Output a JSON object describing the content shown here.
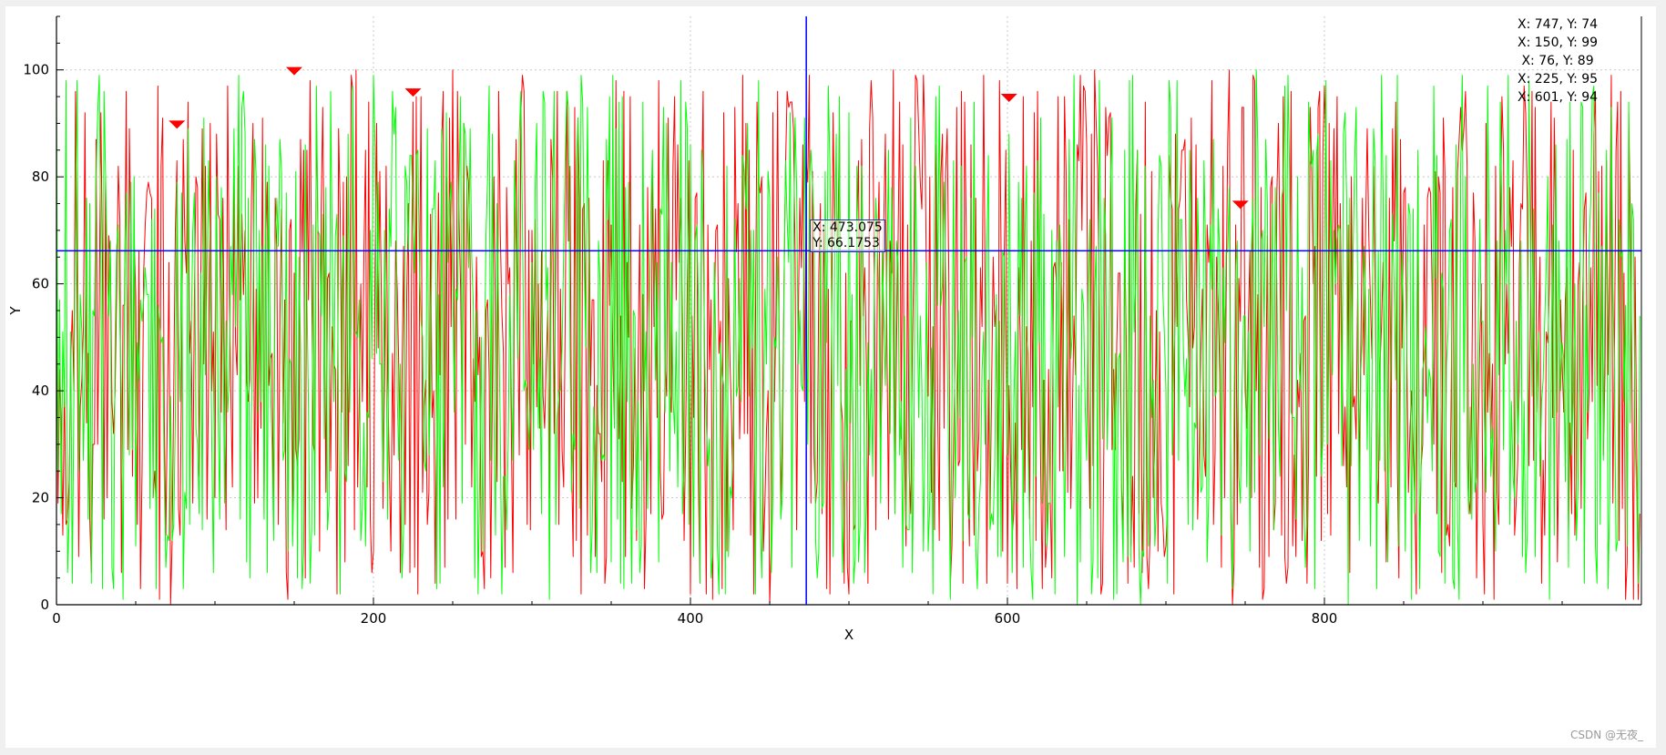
{
  "window": {
    "watermark": "CSDN @无夜_"
  },
  "crosshair": {
    "x_label": "X: 473.075",
    "y_label": "Y: 66.1753",
    "x": 473.075,
    "y": 66.1753,
    "color": "#0000ff"
  },
  "marker_list": [
    "X: 747, Y: 74",
    "X: 150, Y: 99",
    " X: 76, Y: 89",
    "X: 225, Y: 95",
    "X: 601, Y: 94"
  ],
  "chart_data": {
    "type": "line",
    "title": "",
    "xlabel": "X",
    "ylabel": "Y",
    "xlim": [
      0,
      1000
    ],
    "ylim": [
      0,
      110
    ],
    "x_ticks": [
      0,
      200,
      400,
      600,
      800
    ],
    "y_ticks": [
      0,
      20,
      40,
      60,
      80,
      100
    ],
    "grid": true,
    "n_points": 1000,
    "series": [
      {
        "color": "#ff0000",
        "value_range": [
          0,
          100
        ],
        "pattern": "random noise between 0 and 100"
      },
      {
        "color": "#00ff00",
        "value_range": [
          0,
          100
        ],
        "pattern": "random noise between 0 and 100"
      }
    ],
    "markers": [
      {
        "x": 747,
        "y": 74,
        "color": "#ff0000",
        "shape": "down-triangle"
      },
      {
        "x": 150,
        "y": 99,
        "color": "#ff0000",
        "shape": "down-triangle"
      },
      {
        "x": 76,
        "y": 89,
        "color": "#ff0000",
        "shape": "down-triangle"
      },
      {
        "x": 225,
        "y": 95,
        "color": "#ff0000",
        "shape": "down-triangle"
      },
      {
        "x": 601,
        "y": 94,
        "color": "#ff0000",
        "shape": "down-triangle"
      }
    ]
  }
}
